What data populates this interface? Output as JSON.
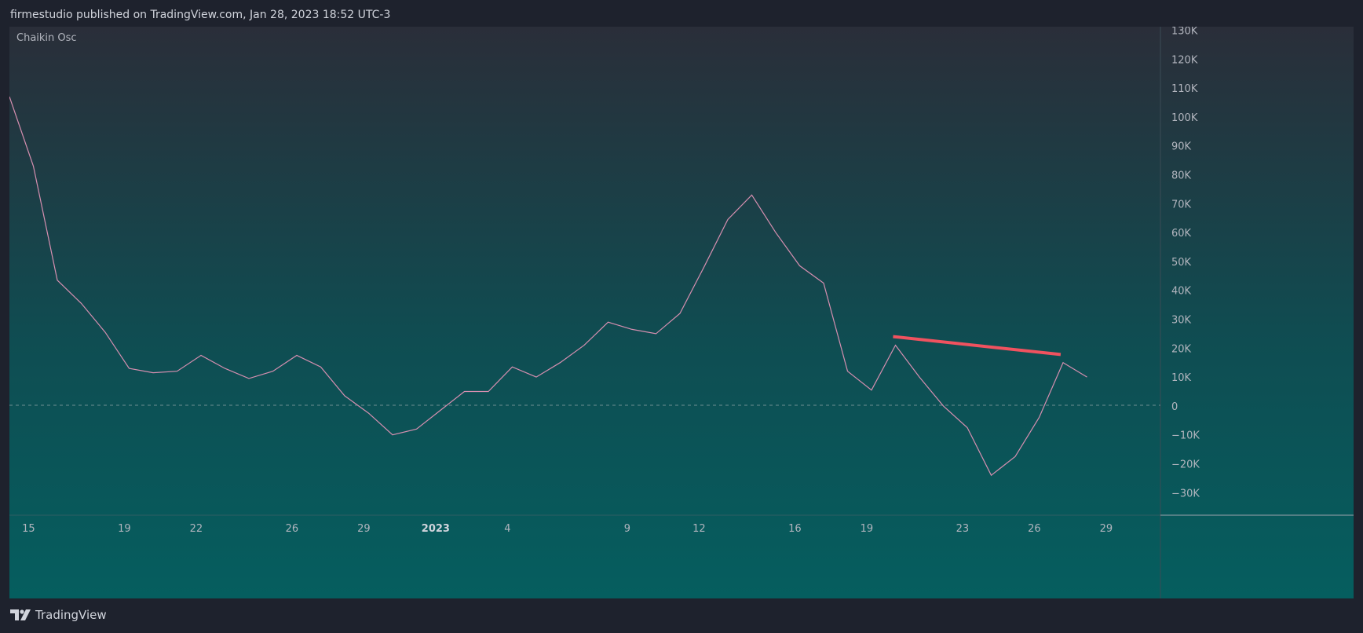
{
  "header": {
    "publish_line": "firmestudio published on TradingView.com, Jan 28, 2023 18:52 UTC-3"
  },
  "footer": {
    "brand": "TradingView"
  },
  "colors": {
    "background": "#1e222d",
    "plot_gradient_top": "#2a2e39",
    "plot_gradient_bottom": "#055e5f",
    "line": "#d68fb0",
    "annotation": "#f0525f",
    "text": "#d1d4dc"
  },
  "chart_data": {
    "type": "line",
    "title": "Chaikin Osc",
    "xlabel": "",
    "ylabel": "",
    "ylim": [
      -38000,
      130000
    ],
    "zero_line": "dashed",
    "y_ticks": [
      {
        "v": 130000,
        "label": "130K"
      },
      {
        "v": 120000,
        "label": "120K"
      },
      {
        "v": 110000,
        "label": "110K"
      },
      {
        "v": 100000,
        "label": "100K"
      },
      {
        "v": 90000,
        "label": "90K"
      },
      {
        "v": 80000,
        "label": "80K"
      },
      {
        "v": 70000,
        "label": "70K"
      },
      {
        "v": 60000,
        "label": "60K"
      },
      {
        "v": 50000,
        "label": "50K"
      },
      {
        "v": 40000,
        "label": "40K"
      },
      {
        "v": 30000,
        "label": "30K"
      },
      {
        "v": 20000,
        "label": "20K"
      },
      {
        "v": 10000,
        "label": "10K"
      },
      {
        "v": 0,
        "label": "0"
      },
      {
        "v": -10000,
        "label": "−10K"
      },
      {
        "v": -20000,
        "label": "−20K"
      },
      {
        "v": -30000,
        "label": "−30K"
      }
    ],
    "x_ticks": [
      {
        "i": 0.8,
        "label": "15",
        "bold": false
      },
      {
        "i": 4.8,
        "label": "19",
        "bold": false
      },
      {
        "i": 7.8,
        "label": "22",
        "bold": false
      },
      {
        "i": 11.8,
        "label": "26",
        "bold": false
      },
      {
        "i": 14.8,
        "label": "29",
        "bold": false
      },
      {
        "i": 17.8,
        "label": "2023",
        "bold": true
      },
      {
        "i": 20.8,
        "label": "4",
        "bold": false
      },
      {
        "i": 25.8,
        "label": "9",
        "bold": false
      },
      {
        "i": 28.8,
        "label": "12",
        "bold": false
      },
      {
        "i": 32.8,
        "label": "16",
        "bold": false
      },
      {
        "i": 35.8,
        "label": "19",
        "bold": false
      },
      {
        "i": 39.8,
        "label": "23",
        "bold": false
      },
      {
        "i": 42.8,
        "label": "26",
        "bold": false
      },
      {
        "i": 45.8,
        "label": "29",
        "bold": false
      }
    ],
    "series": [
      {
        "values": [
          107000,
          83000,
          43500,
          35500,
          25500,
          13000,
          11500,
          12000,
          17500,
          13000,
          9500,
          12000,
          17500,
          13500,
          3500,
          -2500,
          -10000,
          -8000,
          -1500,
          5000,
          5000,
          13500,
          10000,
          15000,
          21000,
          29000,
          26500,
          25000,
          32000,
          48000,
          64500,
          73000,
          60000,
          48500,
          42500,
          12000,
          5500,
          21000,
          10000,
          0,
          -7500,
          -24000,
          -17500,
          -4000,
          15000,
          10000
        ]
      }
    ],
    "annotations": [
      {
        "type": "trendline",
        "from": [
          36.9,
          24000
        ],
        "to": [
          43.9,
          17800
        ]
      }
    ]
  }
}
